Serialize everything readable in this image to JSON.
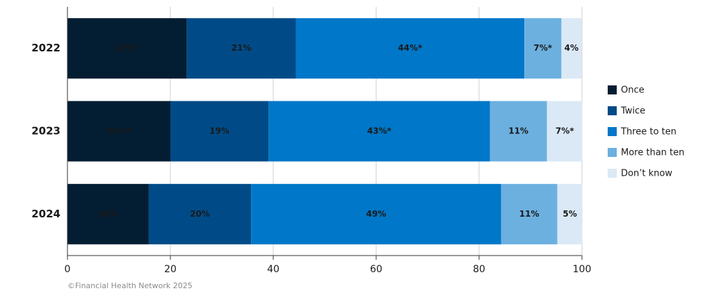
{
  "chart_data": {
    "type": "bar",
    "orientation": "horizontal",
    "stacked": true,
    "categories": [
      "2022",
      "2023",
      "2024"
    ],
    "series": [
      {
        "name": "Once",
        "color": "#031d33",
        "values": [
          23.2,
          20.0,
          15.8
        ],
        "value_labels": [
          "23%*",
          "20%*",
          "16%"
        ]
      },
      {
        "name": "Twice",
        "color": "#004b87",
        "values": [
          21.2,
          19.1,
          19.9
        ],
        "value_labels": [
          "21%",
          "19%",
          "20%"
        ]
      },
      {
        "name": "Three to ten",
        "color": "#0077c8",
        "values": [
          44.4,
          43.0,
          48.6
        ],
        "value_labels": [
          "44%*",
          "43%*",
          "49%"
        ]
      },
      {
        "name": "More than ten",
        "color": "#6cb0e0",
        "values": [
          7.2,
          11.1,
          10.9
        ],
        "value_labels": [
          "7%*",
          "11%",
          "11%"
        ]
      },
      {
        "name": "Don’t know",
        "color": "#dbe9f6",
        "values": [
          3.9,
          6.9,
          4.9
        ],
        "value_labels": [
          "4%",
          "7%*",
          "5%"
        ]
      }
    ],
    "xlim": [
      0,
      100
    ],
    "xticks": [
      0,
      20,
      40,
      60,
      80,
      100
    ],
    "grid": true,
    "legend": "right",
    "source": "©Financial Health Network 2025"
  }
}
